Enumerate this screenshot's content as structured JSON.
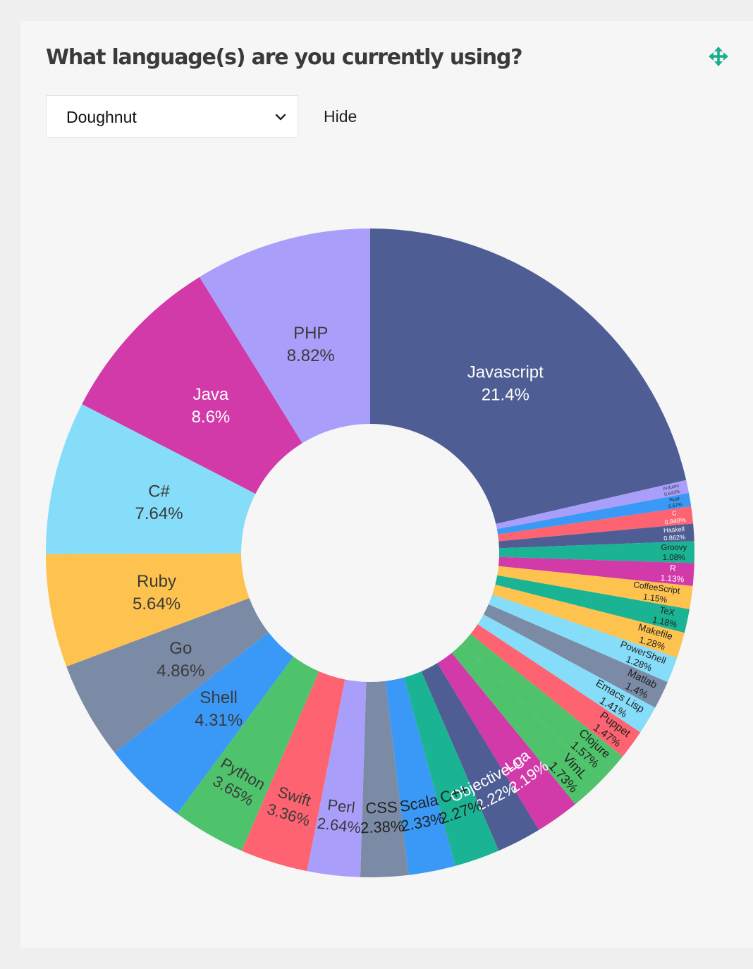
{
  "panel": {
    "title": "What language(s) are you currently using?",
    "chart_type_select": {
      "value": "Doughnut"
    },
    "hide_label": "Hide",
    "move_icon": "move-arrows-icon",
    "accent_color": "#1aae8f"
  },
  "chart_data": {
    "type": "pie",
    "variant": "doughnut",
    "title": "",
    "slices": [
      {
        "label": "Javascript",
        "value": 21.4,
        "display": "21.4%",
        "color": "#4e5d94",
        "text": "#ffffff"
      },
      {
        "label": "Arduino",
        "value": 0.643,
        "display": "0.643%",
        "color": "#a99ffb",
        "text": "#3a3a3a"
      },
      {
        "label": "Rust",
        "value": 0.67,
        "display": "0.67%",
        "color": "#3a99f7",
        "text": "#222222"
      },
      {
        "label": "C",
        "value": 0.848,
        "display": "0.848%",
        "color": "#fd6370",
        "text": "#ffffff"
      },
      {
        "label": "Haskell",
        "value": 0.862,
        "display": "0.862%",
        "color": "#4e5d94",
        "text": "#ffffff"
      },
      {
        "label": "Groovy",
        "value": 1.08,
        "display": "1.08%",
        "color": "#1ab394",
        "text": "#222222"
      },
      {
        "label": "R",
        "value": 1.13,
        "display": "1.13%",
        "color": "#d23aa9",
        "text": "#ffffff"
      },
      {
        "label": "CoffeeScript",
        "value": 1.15,
        "display": "1.15%",
        "color": "#fec24f",
        "text": "#222222"
      },
      {
        "label": "TeX",
        "value": 1.18,
        "display": "1.18%",
        "color": "#1ab394",
        "text": "#222222"
      },
      {
        "label": "Makefile",
        "value": 1.28,
        "display": "1.28%",
        "color": "#fec24f",
        "text": "#222222"
      },
      {
        "label": "PowerShell",
        "value": 1.28,
        "display": "1.28%",
        "color": "#86ddf9",
        "text": "#222222"
      },
      {
        "label": "Matlab",
        "value": 1.4,
        "display": "1.4%",
        "color": "#7b8ba6",
        "text": "#222222"
      },
      {
        "label": "Emacs Lisp",
        "value": 1.41,
        "display": "1.41%",
        "color": "#86ddf9",
        "text": "#222222"
      },
      {
        "label": "Puppet",
        "value": 1.47,
        "display": "1.47%",
        "color": "#fd6370",
        "text": "#222222"
      },
      {
        "label": "Clojure",
        "value": 1.57,
        "display": "1.57%",
        "color": "#4fc36b",
        "text": "#222222"
      },
      {
        "label": "VimL",
        "value": 1.73,
        "display": "1.73%",
        "color": "#4fc36b",
        "text": "#222222"
      },
      {
        "label": "Lua",
        "value": 2.19,
        "display": "2.19%",
        "color": "#d23aa9",
        "text": "#ffffff"
      },
      {
        "label": "Objective-C",
        "value": 2.22,
        "display": "2.22%",
        "color": "#4e5d94",
        "text": "#ffffff"
      },
      {
        "label": "C++",
        "value": 2.27,
        "display": "2.27%",
        "color": "#1ab394",
        "text": "#222222"
      },
      {
        "label": "Scala",
        "value": 2.33,
        "display": "2.33%",
        "color": "#3a99f7",
        "text": "#222222"
      },
      {
        "label": "CSS",
        "value": 2.38,
        "display": "2.38%",
        "color": "#7b8ba6",
        "text": "#222222"
      },
      {
        "label": "Perl",
        "value": 2.64,
        "display": "2.64%",
        "color": "#a99ffb",
        "text": "#3a3a3a"
      },
      {
        "label": "Swift",
        "value": 3.36,
        "display": "3.36%",
        "color": "#fd6370",
        "text": "#3a3a3a"
      },
      {
        "label": "Python",
        "value": 3.65,
        "display": "3.65%",
        "color": "#4fc36b",
        "text": "#3a3a3a"
      },
      {
        "label": "Shell",
        "value": 4.31,
        "display": "4.31%",
        "color": "#3a99f7",
        "text": "#3a3a3a"
      },
      {
        "label": "Go",
        "value": 4.86,
        "display": "4.86%",
        "color": "#7b8ba6",
        "text": "#3a3a3a"
      },
      {
        "label": "Ruby",
        "value": 5.64,
        "display": "5.64%",
        "color": "#fec24f",
        "text": "#3a3a3a"
      },
      {
        "label": "C#",
        "value": 7.64,
        "display": "7.64%",
        "color": "#86ddf9",
        "text": "#3a3a3a"
      },
      {
        "label": "Java",
        "value": 8.6,
        "display": "8.6%",
        "color": "#d23aa9",
        "text": "#ffffff"
      },
      {
        "label": "PHP",
        "value": 8.82,
        "display": "8.82%",
        "color": "#a99ffb",
        "text": "#3a3a3a"
      }
    ]
  }
}
